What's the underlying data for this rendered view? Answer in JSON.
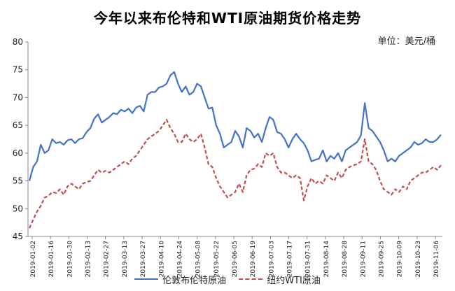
{
  "chart_data": {
    "type": "line",
    "title": "今年以来布伦特和WTI原油期货价格走势",
    "unit_label": "单位：美元/桶",
    "ylim": [
      45,
      80
    ],
    "yticks": [
      45,
      50,
      55,
      60,
      65,
      70,
      75,
      80
    ],
    "xtick_labels": [
      "2019-01-02",
      "2019-01-16",
      "2019-01-30",
      "2019-02-13",
      "2019-02-27",
      "2019-03-13",
      "2019-03-27",
      "2019-04-10",
      "2019-04-24",
      "2019-05-08",
      "2019-05-22",
      "2019-06-05",
      "2019-06-19",
      "2019-07-03",
      "2019-07-17",
      "2019-07-31",
      "2019-08-14",
      "2019-08-28",
      "2019-09-11",
      "2019-09-25",
      "2019-10-09",
      "2019-10-23",
      "2019-11-06"
    ],
    "grid": false,
    "legend_position": "bottom",
    "colors": {
      "brent": "#4472c4",
      "wti": "#c0504d"
    },
    "series": [
      {
        "name": "伦敦布伦特原油",
        "style": "solid",
        "values": [
          55.0,
          57.5,
          58.5,
          61.5,
          60.0,
          60.5,
          62.5,
          61.8,
          62.0,
          61.5,
          62.3,
          62.5,
          61.8,
          62.5,
          62.7,
          63.8,
          64.5,
          66.2,
          67.0,
          65.5,
          66.0,
          66.5,
          67.2,
          67.0,
          67.8,
          67.5,
          68.0,
          67.2,
          68.2,
          68.5,
          67.5,
          70.5,
          71.0,
          71.0,
          71.8,
          72.0,
          72.5,
          74.0,
          74.6,
          72.5,
          71.0,
          72.0,
          70.5,
          71.0,
          72.5,
          72.0,
          70.0,
          68.0,
          68.2,
          65.0,
          63.5,
          61.0,
          61.5,
          62.0,
          64.0,
          63.0,
          61.0,
          64.5,
          64.0,
          62.8,
          63.5,
          62.0,
          64.5,
          66.5,
          66.0,
          63.8,
          63.5,
          62.5,
          61.0,
          62.5,
          63.5,
          62.5,
          61.8,
          60.5,
          58.5,
          58.8,
          59.0,
          60.5,
          58.5,
          59.5,
          59.0,
          60.0,
          58.5,
          60.5,
          61.0,
          61.5,
          62.0,
          63.2,
          69.0,
          64.5,
          64.0,
          63.0,
          62.0,
          60.5,
          58.5,
          59.0,
          58.5,
          59.5,
          60.0,
          60.5,
          61.0,
          62.0,
          61.5,
          61.8,
          62.5,
          62.0,
          62.0,
          62.5,
          63.3
        ]
      },
      {
        "name": "纽约WTI原油",
        "style": "dashed",
        "values": [
          46.5,
          48.0,
          49.5,
          50.5,
          52.0,
          52.3,
          53.0,
          52.8,
          53.5,
          52.5,
          54.0,
          54.5,
          54.0,
          53.5,
          54.5,
          54.8,
          55.0,
          56.0,
          57.0,
          56.5,
          56.8,
          56.5,
          57.0,
          57.5,
          58.0,
          58.5,
          58.0,
          59.0,
          59.5,
          60.5,
          61.5,
          62.5,
          63.0,
          63.5,
          64.0,
          65.0,
          66.0,
          64.5,
          63.5,
          62.0,
          62.0,
          63.5,
          62.5,
          62.0,
          62.5,
          63.5,
          61.0,
          58.0,
          57.5,
          55.5,
          54.0,
          53.0,
          52.0,
          52.5,
          53.0,
          54.5,
          53.0,
          56.0,
          57.0,
          57.2,
          58.0,
          57.5,
          60.0,
          59.5,
          60.0,
          57.5,
          56.5,
          56.5,
          56.0,
          55.5,
          56.0,
          55.5,
          51.5,
          54.0,
          55.5,
          54.5,
          55.0,
          54.5,
          56.0,
          55.5,
          55.0,
          56.5,
          55.5,
          57.0,
          57.5,
          57.8,
          58.0,
          58.5,
          62.5,
          58.5,
          58.0,
          57.0,
          55.0,
          53.5,
          53.0,
          52.5,
          53.5,
          53.0,
          54.0,
          53.5,
          55.0,
          55.5,
          56.0,
          56.5,
          56.5,
          57.0,
          57.5,
          57.0,
          57.8
        ]
      }
    ]
  }
}
